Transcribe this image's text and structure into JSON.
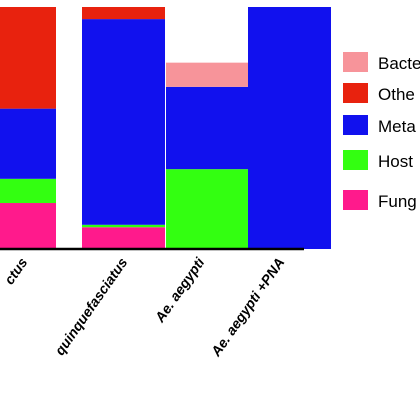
{
  "chart_data": {
    "type": "bar",
    "stacked": true,
    "categories": [
      "ctus",
      "quinquefasciatus",
      "Ae. aegypti",
      "Ae. aegypti +PNA"
    ],
    "series": [
      {
        "name": "Fung",
        "color": "#ff1a8c",
        "values": [
          19,
          9,
          0,
          0
        ]
      },
      {
        "name": "Host",
        "color": "#33ff11",
        "values": [
          10,
          1,
          33,
          0
        ]
      },
      {
        "name": "Meta",
        "color": "#1111ee",
        "values": [
          29,
          85,
          34,
          100
        ]
      },
      {
        "name": "Othe",
        "color": "#e8220e",
        "values": [
          42,
          5,
          0,
          0
        ]
      },
      {
        "name": "Bacte",
        "color": "#f7949a",
        "values": [
          0,
          0,
          10,
          0
        ]
      }
    ],
    "legend": {
      "position": "right",
      "order": [
        "Bacte",
        "Othe",
        "Meta",
        "Host",
        "Fung"
      ]
    },
    "ylim": [
      0,
      100
    ],
    "title": "",
    "xlabel": "",
    "ylabel": ""
  }
}
